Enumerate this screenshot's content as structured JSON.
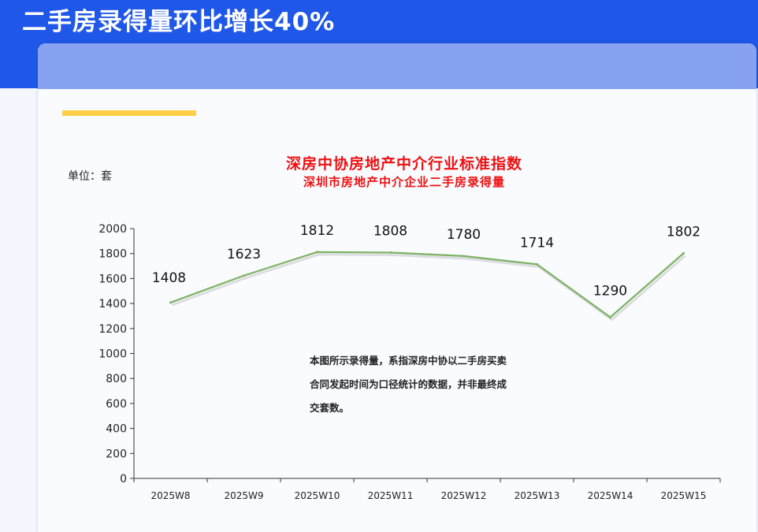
{
  "page": {
    "headline": "二手房录得量环比增长40%",
    "unit_label": "单位：套",
    "note": "本图所示录得量，系指深房中协以二手房买卖合同发起时间为口径统计的数据，并非最终成交套数。"
  },
  "colors": {
    "top_band": "#1f57e8",
    "card_header": "#86a2f1",
    "accent_bar": "#ffcf47",
    "title_red": "#ee1111",
    "line_green": "#7cb15f"
  },
  "chart_data": {
    "type": "line",
    "title": "深房中协房地产中介行业标准指数",
    "subtitle": "深圳市房地产中介企业二手房录得量",
    "categories": [
      "2025W8",
      "2025W9",
      "2025W10",
      "2025W11",
      "2025W12",
      "2025W13",
      "2025W14",
      "2025W15"
    ],
    "series": [
      {
        "values": [
          1408,
          1623,
          1812,
          1808,
          1780,
          1714,
          1290,
          1802
        ]
      }
    ],
    "y_ticks": [
      "0",
      "200",
      "400",
      "600",
      "800",
      "1000",
      "1200",
      "1400",
      "1600",
      "1800",
      "2000"
    ],
    "ylim": [
      0,
      2000
    ],
    "grid": false,
    "legend": "none",
    "data_labels": true
  }
}
